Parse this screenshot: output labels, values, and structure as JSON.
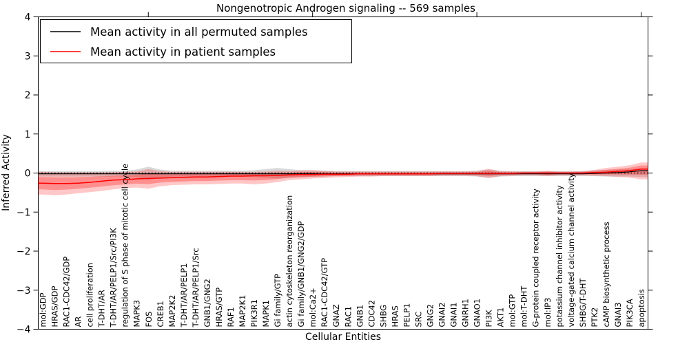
{
  "title": "Nongenotropic Androgen signaling -- 569 samples",
  "xlabel": "Cellular Entities",
  "ylabel": "Inferred Activity",
  "legend": {
    "entries": [
      {
        "label": "Mean activity in all permuted samples",
        "color": "#000000"
      },
      {
        "label": "Mean activity in patient samples",
        "color": "#ff0000"
      }
    ]
  },
  "colors": {
    "permuted_line": "#000000",
    "patient_line": "#ff0000",
    "permuted_band": "#aaaaaa",
    "patient_band": "#ff0000",
    "zero_line": "#000000",
    "axis": "#000000"
  },
  "chart_data": {
    "type": "line",
    "title": "Nongenotropic Androgen signaling -- 569 samples",
    "xlabel": "Cellular Entities",
    "ylabel": "Inferred Activity",
    "ylim": [
      -4,
      4
    ],
    "grid": false,
    "legend_position": "upper left",
    "y_ticks": [
      {
        "value": 4,
        "label": "4"
      },
      {
        "value": 3,
        "label": "3"
      },
      {
        "value": 2,
        "label": "2"
      },
      {
        "value": 1,
        "label": "1"
      },
      {
        "value": 0,
        "label": "0"
      },
      {
        "value": -1,
        "label": "−1"
      },
      {
        "value": -2,
        "label": "−2"
      },
      {
        "value": -3,
        "label": "−3"
      },
      {
        "value": -4,
        "label": "−4"
      }
    ],
    "top_tick_indices": [
      9,
      23,
      37,
      51
    ],
    "categories": [
      "mol:GDP",
      "HRAS/GDP",
      "RAC1-CDC42/GDP",
      "AR",
      "cell proliferation",
      "T-DHT/AR",
      "T-DHT/AR/PELP1/Src/PI3K",
      "regulation of S phase of mitotic cell cycle",
      "MAPK3",
      "FOS",
      "CREB1",
      "MAP2K2",
      "T-DHT/AR/PELP1",
      "T-DHT/AR/PELP1/Src",
      "GNB1/GNG2",
      "HRAS/GTP",
      "RAF1",
      "MAP2K1",
      "PIK3R1",
      "MAPK1",
      "Gi family/GTP",
      "actin cytoskeleton reorganization",
      "Gi family/GNB1/GNG2/GDP",
      "mol:Ca2+",
      "RAC1-CDC42/GTP",
      "GNAZ",
      "RAC1",
      "GNB1",
      "CDC42",
      "SHBG",
      "HRAS",
      "PELP1",
      "SRC",
      "GNG2",
      "GNAI2",
      "GNAI1",
      "GNRH1",
      "GNAO1",
      "PI3K",
      "AKT1",
      "mol:GTP",
      "mol:T-DHT",
      "G-protein coupled receptor activity",
      "mol:IP3",
      "potassium channel inhibitor activity",
      "voltage-gated calcium channel activity",
      "SHBG/T-DHT",
      "PTK2",
      "cAMP biosynthetic process",
      "GNAI3",
      "PIK3CA",
      "apoptosis"
    ],
    "series": [
      {
        "name": "Mean activity in all permuted samples",
        "values": [
          -0.02,
          -0.02,
          -0.02,
          -0.02,
          -0.02,
          -0.02,
          -0.02,
          -0.02,
          -0.02,
          -0.02,
          -0.02,
          -0.02,
          -0.02,
          -0.02,
          -0.02,
          -0.02,
          -0.02,
          -0.02,
          -0.02,
          -0.02,
          -0.02,
          -0.02,
          -0.02,
          -0.02,
          -0.02,
          -0.02,
          -0.02,
          -0.02,
          -0.02,
          -0.02,
          -0.02,
          -0.02,
          -0.02,
          -0.02,
          -0.02,
          -0.02,
          -0.02,
          -0.02,
          -0.02,
          -0.02,
          -0.02,
          -0.02,
          -0.02,
          -0.02,
          -0.02,
          -0.02,
          -0.02,
          -0.01,
          0.0,
          0.01,
          0.03,
          0.06
        ],
        "upper": [
          0.05,
          0.05,
          0.05,
          0.05,
          0.05,
          0.05,
          0.06,
          0.06,
          0.09,
          0.16,
          0.09,
          0.06,
          0.06,
          0.06,
          0.06,
          0.06,
          0.06,
          0.06,
          0.07,
          0.1,
          0.13,
          0.1,
          0.07,
          0.06,
          0.06,
          0.05,
          0.05,
          0.05,
          0.05,
          0.05,
          0.05,
          0.05,
          0.05,
          0.05,
          0.05,
          0.05,
          0.05,
          0.06,
          0.09,
          0.06,
          0.05,
          0.05,
          0.05,
          0.05,
          0.05,
          0.05,
          0.05,
          0.07,
          0.08,
          0.09,
          0.1,
          0.12
        ],
        "lower": [
          -0.09,
          -0.09,
          -0.09,
          -0.09,
          -0.09,
          -0.09,
          -0.09,
          -0.09,
          -0.11,
          -0.18,
          -0.11,
          -0.09,
          -0.09,
          -0.09,
          -0.09,
          -0.09,
          -0.09,
          -0.09,
          -0.1,
          -0.12,
          -0.14,
          -0.12,
          -0.1,
          -0.09,
          -0.09,
          -0.08,
          -0.08,
          -0.08,
          -0.08,
          -0.08,
          -0.08,
          -0.08,
          -0.08,
          -0.08,
          -0.08,
          -0.08,
          -0.08,
          -0.09,
          -0.12,
          -0.09,
          -0.08,
          -0.08,
          -0.08,
          -0.08,
          -0.08,
          -0.08,
          -0.08,
          -0.08,
          -0.09,
          -0.09,
          -0.09,
          -0.1
        ]
      },
      {
        "name": "Mean activity in patient samples",
        "values": [
          -0.26,
          -0.27,
          -0.27,
          -0.26,
          -0.24,
          -0.21,
          -0.18,
          -0.17,
          -0.15,
          -0.14,
          -0.13,
          -0.12,
          -0.11,
          -0.1,
          -0.1,
          -0.09,
          -0.08,
          -0.08,
          -0.07,
          -0.07,
          -0.06,
          -0.05,
          -0.04,
          -0.04,
          -0.03,
          -0.03,
          -0.03,
          -0.02,
          -0.02,
          -0.02,
          -0.02,
          -0.02,
          -0.02,
          -0.02,
          -0.01,
          -0.01,
          -0.01,
          -0.01,
          -0.01,
          -0.01,
          -0.01,
          0.0,
          0.0,
          0.0,
          0.0,
          0.0,
          0.0,
          0.01,
          0.02,
          0.04,
          0.06,
          0.1
        ],
        "upper": [
          0.03,
          0.02,
          0.02,
          0.02,
          0.02,
          0.02,
          0.02,
          0.03,
          0.04,
          0.1,
          0.05,
          0.03,
          0.03,
          0.03,
          0.03,
          0.03,
          0.03,
          0.03,
          0.03,
          0.04,
          0.06,
          0.05,
          0.07,
          0.08,
          0.06,
          0.04,
          0.04,
          0.04,
          0.04,
          0.04,
          0.04,
          0.04,
          0.04,
          0.04,
          0.04,
          0.04,
          0.04,
          0.05,
          0.11,
          0.05,
          0.04,
          0.04,
          0.04,
          0.06,
          0.04,
          0.04,
          0.05,
          0.08,
          0.13,
          0.16,
          0.2,
          0.27
        ],
        "lower": [
          -0.55,
          -0.57,
          -0.55,
          -0.52,
          -0.49,
          -0.46,
          -0.42,
          -0.39,
          -0.37,
          -0.4,
          -0.34,
          -0.31,
          -0.3,
          -0.29,
          -0.29,
          -0.28,
          -0.27,
          -0.27,
          -0.29,
          -0.27,
          -0.23,
          -0.18,
          -0.16,
          -0.14,
          -0.13,
          -0.11,
          -0.1,
          -0.09,
          -0.09,
          -0.08,
          -0.08,
          -0.08,
          -0.08,
          -0.08,
          -0.07,
          -0.07,
          -0.07,
          -0.08,
          -0.13,
          -0.08,
          -0.07,
          -0.06,
          -0.06,
          -0.08,
          -0.06,
          -0.06,
          -0.06,
          -0.07,
          -0.08,
          -0.1,
          -0.12,
          -0.16
        ]
      }
    ]
  }
}
